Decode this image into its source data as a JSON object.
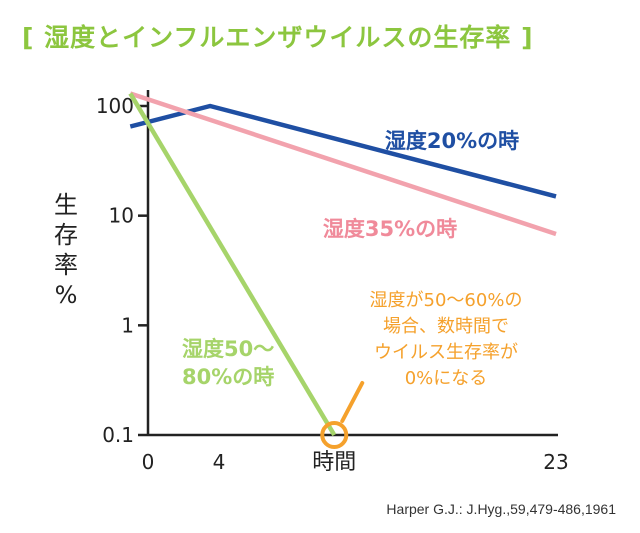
{
  "title": "[ 湿度とインフルエンザウイルスの生存率 ]",
  "ylabel": [
    "生",
    "存",
    "率",
    "%"
  ],
  "source": "Harper G.J.: J.Hyg.,59,479-486,1961",
  "chart_data": {
    "type": "line",
    "title": "湿度とインフルエンザウイルスの生存率",
    "xlabel": "時間",
    "ylabel": "生存率%",
    "yscale": "log",
    "xlim": [
      0,
      23
    ],
    "ylim": [
      0.1,
      150
    ],
    "x_ticks": [
      "0",
      "4",
      "23"
    ],
    "y_ticks": [
      {
        "value": 100,
        "label": "100"
      },
      {
        "value": 10,
        "label": "10"
      },
      {
        "value": 1,
        "label": "1"
      },
      {
        "value": 0.1,
        "label": "0.1"
      }
    ],
    "grid": false,
    "series": [
      {
        "name": "湿度20%の時",
        "color": "#1f4fa3",
        "points": [
          [
            -1,
            65
          ],
          [
            3.5,
            100
          ],
          [
            23,
            15
          ]
        ]
      },
      {
        "name": "湿度35%の時",
        "color": "#f2a2ad",
        "points": [
          [
            -1,
            130
          ],
          [
            23,
            6.8
          ]
        ]
      },
      {
        "name": "湿度50〜80%の時",
        "color": "#a6d46a",
        "points": [
          [
            -1,
            130
          ],
          [
            10.5,
            0.1
          ]
        ]
      }
    ],
    "series_labels": [
      {
        "series": 0,
        "lines": [
          "湿度20%の時"
        ],
        "color": "#1f4fa3"
      },
      {
        "series": 1,
        "lines": [
          "湿度35%の時"
        ],
        "color": "#f08a9a"
      },
      {
        "series": 2,
        "lines": [
          "湿度50〜",
          "80%の時"
        ],
        "color": "#a6d46a"
      }
    ],
    "annotation": {
      "lines": [
        "湿度が50〜60%の",
        "場合、数時間で",
        "ウイルス生存率が",
        "0%になる"
      ],
      "color": "#f5a12c",
      "x": 10.5,
      "y": 0.1
    }
  }
}
